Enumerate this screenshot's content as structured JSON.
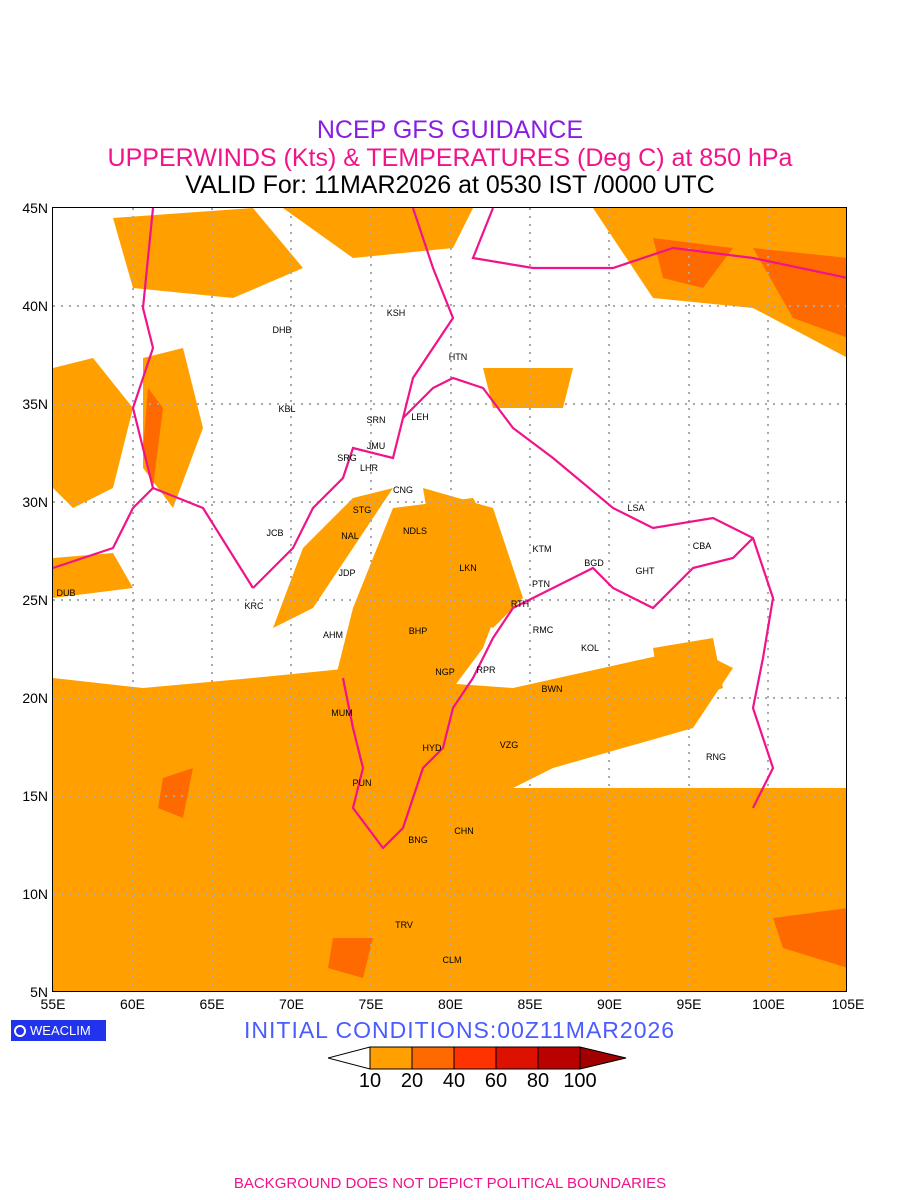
{
  "title": {
    "line1": "NCEP GFS GUIDANCE",
    "line2": "UPPERWINDS (Kts) & TEMPERATURES (Deg C) at 850 hPa",
    "line3": "VALID For: 11MAR2026 at 0530 IST /0000 UTC"
  },
  "axes": {
    "lat_labels": [
      "45N",
      "40N",
      "35N",
      "30N",
      "25N",
      "20N",
      "15N",
      "10N",
      "5N"
    ],
    "lon_labels": [
      "55E",
      "60E",
      "65E",
      "70E",
      "75E",
      "80E",
      "85E",
      "90E",
      "95E",
      "100E",
      "105E"
    ]
  },
  "stations": [
    "DHB",
    "KSH",
    "HTN",
    "KBL",
    "SRN",
    "LEH",
    "JMU",
    "SRG",
    "LHR",
    "CNG",
    "STG",
    "NDLS",
    "NAL",
    "JCB",
    "LSA",
    "KTM",
    "BGD",
    "CBA",
    "GHT",
    "JDP",
    "LKN",
    "PTN",
    "DUB",
    "KRC",
    "RTH",
    "AHM",
    "BHP",
    "RMC",
    "KOL",
    "NGP",
    "RPR",
    "BWN",
    "MUM",
    "HYD",
    "VZG",
    "RNG",
    "PUN",
    "CHN",
    "BNG",
    "TRV",
    "CLM"
  ],
  "logo": "WEACLIM",
  "initial_conditions": "INITIAL CONDITIONS:00Z11MAR2026",
  "colorbar": {
    "labels": [
      "10",
      "20",
      "40",
      "60",
      "80",
      "100"
    ],
    "colors": [
      "#ffffff",
      "#ffa000",
      "#ff6a00",
      "#ff3300",
      "#dd1100",
      "#bb0000",
      "#a00000"
    ]
  },
  "footer": "BACKGROUND DOES NOT DEPICT POLITICAL BOUNDARIES"
}
